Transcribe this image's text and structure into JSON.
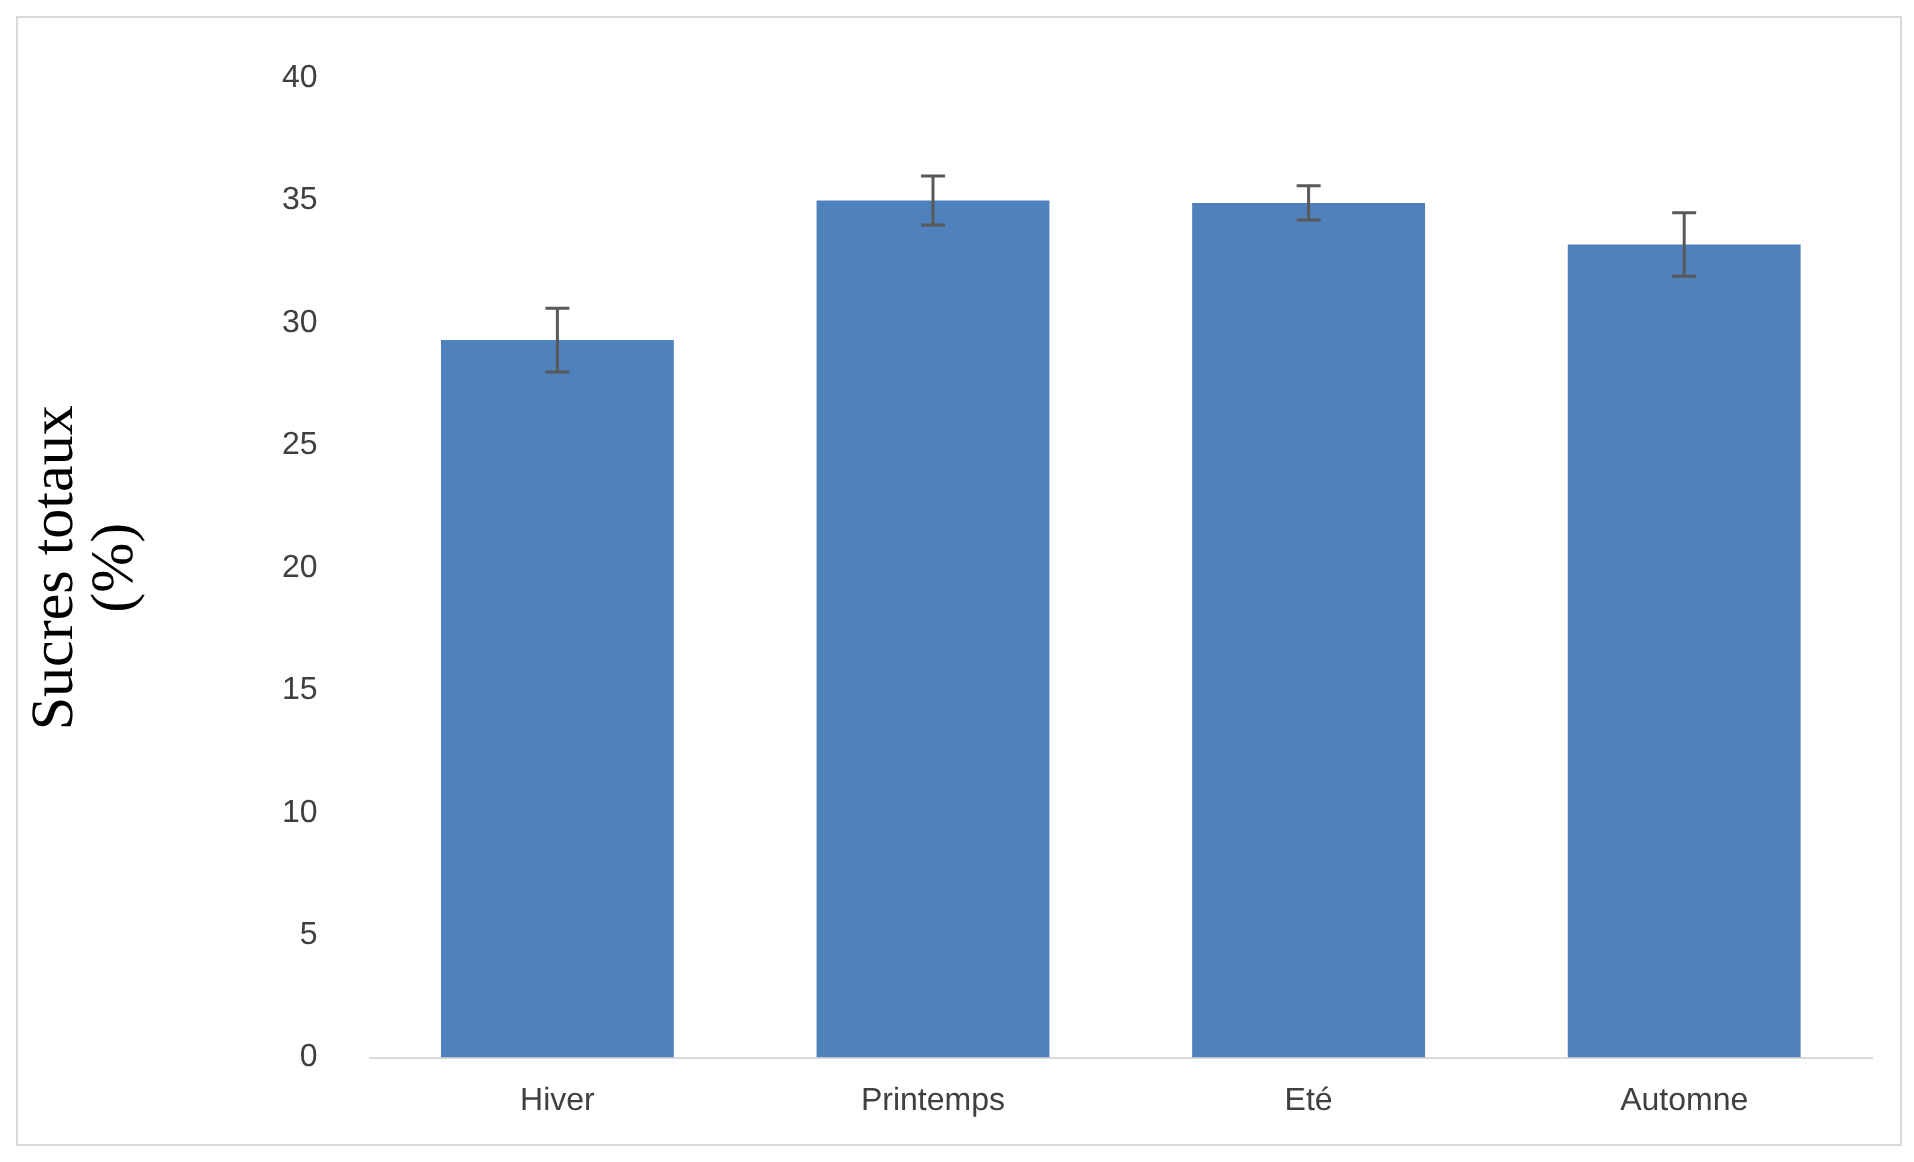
{
  "chart_data": {
    "type": "bar",
    "ylabel": "Sucres totaux\n(%)",
    "categories": [
      "Hiver",
      "Printemps",
      "Eté",
      "Automne"
    ],
    "values": [
      29.3,
      35.0,
      34.9,
      33.2
    ],
    "errors": [
      1.3,
      1.0,
      0.7,
      1.3
    ],
    "color": "#4f81bd",
    "ylim": [
      0,
      40
    ],
    "yticks": [
      0,
      5,
      10,
      15,
      20,
      25,
      30,
      35,
      40
    ],
    "grid": false
  }
}
